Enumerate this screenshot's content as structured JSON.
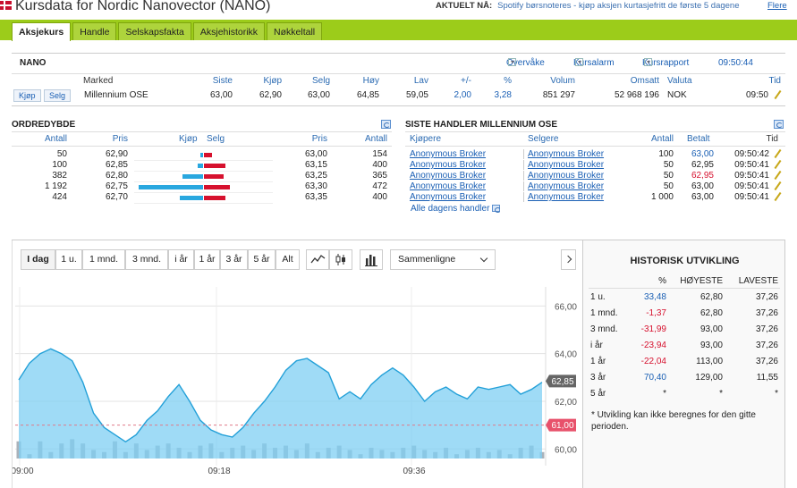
{
  "header": {
    "title": "Kursdata for Nordic Nanovector (NANO)",
    "news_label": "AKTUELT NÅ:",
    "news_text": "Spotify børsnoteres - kjøp aksjen kurtasjefritt de første 5 dagene",
    "news_more": "Flere"
  },
  "tabs": [
    "Aksjekurs",
    "Handle",
    "Selskapsfakta",
    "Aksjehistorikk",
    "Nøkkeltall"
  ],
  "quote": {
    "symbol": "NANO",
    "links": [
      "Overvåke",
      "Kursalarm",
      "Kursrapport"
    ],
    "time": "09:50:44",
    "headers": [
      "Marked",
      "Siste",
      "Kjøp",
      "Selg",
      "Høy",
      "Lav",
      "+/-",
      "%",
      "Volum",
      "Omsatt",
      "Valuta",
      "Tid"
    ],
    "buy_label": "Kjøp",
    "sell_label": "Selg",
    "values": {
      "market": "Millennium OSE",
      "last": "63,00",
      "bid": "62,90",
      "ask": "63,00",
      "high": "64,85",
      "low": "59,05",
      "change": "2,00",
      "pct": "3,28",
      "volume": "851 297",
      "turnover": "52 968 196",
      "currency": "NOK",
      "tid": "09:50"
    }
  },
  "orderbook": {
    "title": "ORDREDYBDE",
    "headers": [
      "Antall",
      "Pris",
      "Kjøp",
      "Selg",
      "Pris",
      "Antall"
    ],
    "rows": [
      {
        "bid_qty": "50",
        "bid_price": "62,90",
        "ask_price": "63,00",
        "ask_qty": "154"
      },
      {
        "bid_qty": "100",
        "bid_price": "62,85",
        "ask_price": "63,15",
        "ask_qty": "400"
      },
      {
        "bid_qty": "382",
        "bid_price": "62,80",
        "ask_price": "63,25",
        "ask_qty": "365"
      },
      {
        "bid_qty": "1 192",
        "bid_price": "62,75",
        "ask_price": "63,30",
        "ask_qty": "472"
      },
      {
        "bid_qty": "424",
        "bid_price": "62,70",
        "ask_price": "63,35",
        "ask_qty": "400"
      }
    ]
  },
  "trades": {
    "title": "SISTE HANDLER MILLENNIUM OSE",
    "headers": [
      "Kjøpere",
      "Selgere",
      "Antall",
      "Betalt",
      "Tid"
    ],
    "rows": [
      {
        "buyer": "Anonymous Broker",
        "seller": "Anonymous Broker",
        "qty": "100",
        "paid": "63,00",
        "time": "09:50:42",
        "color": "#1a5fb4"
      },
      {
        "buyer": "Anonymous Broker",
        "seller": "Anonymous Broker",
        "qty": "50",
        "paid": "62,95",
        "time": "09:50:41",
        "color": "#222222"
      },
      {
        "buyer": "Anonymous Broker",
        "seller": "Anonymous Broker",
        "qty": "50",
        "paid": "62,95",
        "time": "09:50:41",
        "color": "#d6112e"
      },
      {
        "buyer": "Anonymous Broker",
        "seller": "Anonymous Broker",
        "qty": "50",
        "paid": "63,00",
        "time": "09:50:41",
        "color": "#222222"
      },
      {
        "buyer": "Anonymous Broker",
        "seller": "Anonymous Broker",
        "qty": "1 000",
        "paid": "63,00",
        "time": "09:50:41",
        "color": "#222222"
      }
    ],
    "all_link": "Alle dagens handler"
  },
  "chart_controls": {
    "ranges": [
      "I dag",
      "1 u.",
      "1 mnd.",
      "3 mnd.",
      "i år",
      "1 år",
      "3 år",
      "5 år",
      "Alt"
    ],
    "compare": "Sammenligne"
  },
  "chart_data": {
    "type": "area",
    "x_ticks": [
      "09:00",
      "09:18",
      "09:36"
    ],
    "y_ticks": [
      "60,00",
      "62,00",
      "64,00",
      "66,00"
    ],
    "ylim": [
      59.6,
      66.8
    ],
    "last_label": "62,85",
    "ref_label": "61,00",
    "last": 62.85,
    "ref": 61.0,
    "values": [
      62.9,
      63.6,
      64.0,
      64.2,
      64.0,
      63.7,
      62.8,
      61.5,
      60.9,
      60.6,
      60.3,
      60.6,
      61.2,
      61.6,
      62.2,
      62.7,
      62.0,
      61.2,
      60.8,
      60.6,
      60.5,
      60.9,
      61.5,
      62.0,
      62.6,
      63.3,
      63.7,
      63.8,
      63.5,
      63.2,
      62.1,
      62.4,
      62.1,
      62.7,
      63.1,
      63.4,
      63.1,
      62.6,
      62.0,
      62.4,
      62.6,
      62.3,
      62.1,
      62.6,
      62.5,
      62.6,
      62.7,
      62.3,
      62.5,
      62.8
    ],
    "volume": [
      0.8,
      0.2,
      0.8,
      0.3,
      0.7,
      0.9,
      0.7,
      0.4,
      0.3,
      0.8,
      0.3,
      0.7,
      0.4,
      0.6,
      0.7,
      0.5,
      0.3,
      0.6,
      0.7,
      0.3,
      0.5,
      0.6,
      0.4,
      0.7,
      0.5,
      0.6,
      0.4,
      0.7,
      0.3,
      0.5,
      0.6,
      0.4,
      0.2,
      0.5,
      0.4,
      0.3,
      0.5,
      0.6,
      0.4,
      0.3,
      0.5,
      0.2,
      0.4,
      0.5,
      0.3,
      0.4,
      0.2,
      0.5,
      0.6,
      0.3
    ]
  },
  "history": {
    "title": "HISTORISK UTVIKLING",
    "headers": [
      "%",
      "HØYESTE",
      "LAVESTE"
    ],
    "rows": [
      {
        "period": "1 u.",
        "pct": "33,48",
        "high": "62,80",
        "low": "37,26",
        "color": "#1a5fb4"
      },
      {
        "period": "1 mnd.",
        "pct": "-1,37",
        "high": "62,80",
        "low": "37,26",
        "color": "#d6112e"
      },
      {
        "period": "3 mnd.",
        "pct": "-31,99",
        "high": "93,00",
        "low": "37,26",
        "color": "#d6112e"
      },
      {
        "period": "i år",
        "pct": "-23,94",
        "high": "93,00",
        "low": "37,26",
        "color": "#d6112e"
      },
      {
        "period": "1 år",
        "pct": "-22,04",
        "high": "113,00",
        "low": "37,26",
        "color": "#d6112e"
      },
      {
        "period": "3 år",
        "pct": "70,40",
        "high": "129,00",
        "low": "11,55",
        "color": "#1a5fb4"
      },
      {
        "period": "5 år",
        "pct": "*",
        "high": "*",
        "low": "*",
        "color": "#222222"
      }
    ],
    "note": "* Utvikling kan ikke beregnes for den gitte perioden."
  }
}
